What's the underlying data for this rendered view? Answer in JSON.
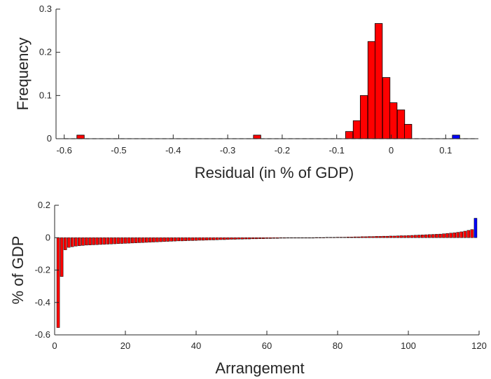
{
  "colors": {
    "red": "#ff0000",
    "blue": "#0000ff",
    "edge": "#000000",
    "axis": "#262626"
  },
  "chart_data": [
    {
      "id": "histogram",
      "type": "bar",
      "xlabel": "Residual (in % of GDP)",
      "ylabel": "Frequency",
      "xlim": [
        -0.615,
        0.16
      ],
      "ylim": [
        0,
        0.3
      ],
      "xticks": [
        "-0.6",
        "-0.5",
        "-0.4",
        "-0.3",
        "-0.2",
        "-0.1",
        "0",
        "0.1"
      ],
      "yticks": [
        "0",
        "0.1",
        "0.2",
        "0.3"
      ],
      "grid": false,
      "bin_width": 0.0135,
      "bars": [
        {
          "x": -0.57,
          "y": 0.0083,
          "color": "red"
        },
        {
          "x": -0.246,
          "y": 0.0083,
          "color": "red"
        },
        {
          "x": -0.077,
          "y": 0.0167,
          "color": "red"
        },
        {
          "x": -0.063,
          "y": 0.0417,
          "color": "red"
        },
        {
          "x": -0.05,
          "y": 0.1,
          "color": "red"
        },
        {
          "x": -0.036,
          "y": 0.225,
          "color": "red"
        },
        {
          "x": -0.023,
          "y": 0.2667,
          "color": "red"
        },
        {
          "x": -0.009,
          "y": 0.1417,
          "color": "red"
        },
        {
          "x": 0.004,
          "y": 0.0833,
          "color": "red"
        },
        {
          "x": 0.018,
          "y": 0.0667,
          "color": "red"
        },
        {
          "x": 0.031,
          "y": 0.0333,
          "color": "red"
        },
        {
          "x": 0.119,
          "y": 0.0083,
          "color": "blue"
        }
      ]
    },
    {
      "id": "sorted-bars",
      "type": "bar",
      "xlabel": "Arrangement",
      "ylabel": "% of GDP",
      "xlim": [
        0,
        120
      ],
      "ylim": [
        -0.6,
        0.2
      ],
      "xticks": [
        "0",
        "20",
        "40",
        "60",
        "80",
        "100",
        "120"
      ],
      "yticks": [
        "-0.6",
        "-0.4",
        "-0.2",
        "0",
        "0.2"
      ],
      "grid": false,
      "n": 119,
      "values": [
        -0.555,
        -0.24,
        -0.075,
        -0.06,
        -0.056,
        -0.052,
        -0.05,
        -0.048,
        -0.046,
        -0.045,
        -0.044,
        -0.043,
        -0.042,
        -0.041,
        -0.04,
        -0.039,
        -0.038,
        -0.037,
        -0.036,
        -0.035,
        -0.034,
        -0.033,
        -0.032,
        -0.031,
        -0.03,
        -0.029,
        -0.028,
        -0.027,
        -0.026,
        -0.025,
        -0.024,
        -0.023,
        -0.022,
        -0.021,
        -0.02,
        -0.02,
        -0.019,
        -0.018,
        -0.018,
        -0.017,
        -0.016,
        -0.016,
        -0.015,
        -0.014,
        -0.014,
        -0.013,
        -0.012,
        -0.012,
        -0.011,
        -0.01,
        -0.01,
        -0.009,
        -0.009,
        -0.008,
        -0.008,
        -0.007,
        -0.007,
        -0.006,
        -0.006,
        -0.005,
        -0.005,
        -0.004,
        -0.004,
        -0.003,
        -0.003,
        -0.002,
        -0.002,
        -0.002,
        -0.001,
        -0.001,
        0,
        0,
        0,
        0.001,
        0.001,
        0.001,
        0.002,
        0.002,
        0.002,
        0.003,
        0.003,
        0.003,
        0.004,
        0.004,
        0.005,
        0.005,
        0.006,
        0.006,
        0.007,
        0.007,
        0.008,
        0.008,
        0.009,
        0.009,
        0.01,
        0.01,
        0.011,
        0.012,
        0.012,
        0.013,
        0.014,
        0.015,
        0.016,
        0.017,
        0.018,
        0.019,
        0.02,
        0.021,
        0.022,
        0.024,
        0.026,
        0.028,
        0.03,
        0.033,
        0.036,
        0.04,
        0.045,
        0.05,
        0.12
      ],
      "highlight_last_color": "blue"
    }
  ]
}
